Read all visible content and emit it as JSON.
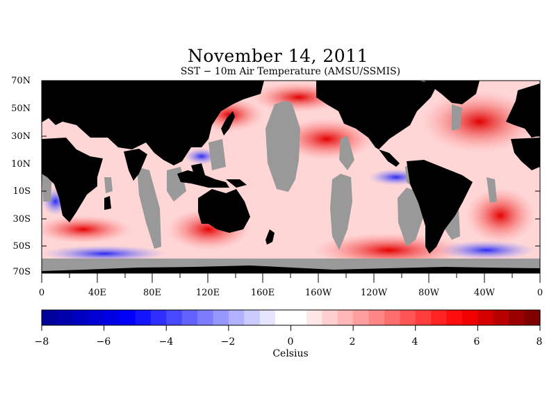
{
  "title": "November 14, 2011",
  "subtitle": "SST − 10m Air Temperature (AMSU/SSMIS)",
  "colors": {
    "land": "#000000",
    "no_data": "#999999",
    "scale_min": "#00009a",
    "scale_mid": "#ffffff",
    "scale_max": "#7f0000"
  },
  "lat_labels": [
    "70N",
    "50N",
    "30N",
    "10N",
    "10S",
    "30S",
    "50S",
    "70S"
  ],
  "lon_labels": [
    "0",
    "40E",
    "80E",
    "120E",
    "160E",
    "160W",
    "120W",
    "80W",
    "40W",
    "0"
  ],
  "colorbar": {
    "min": -8,
    "max": 8,
    "step": 0.5,
    "tick_labels": [
      "−8",
      "−6",
      "−4",
      "−2",
      "0",
      "2",
      "4",
      "6",
      "8"
    ],
    "units": "Celsius"
  }
}
